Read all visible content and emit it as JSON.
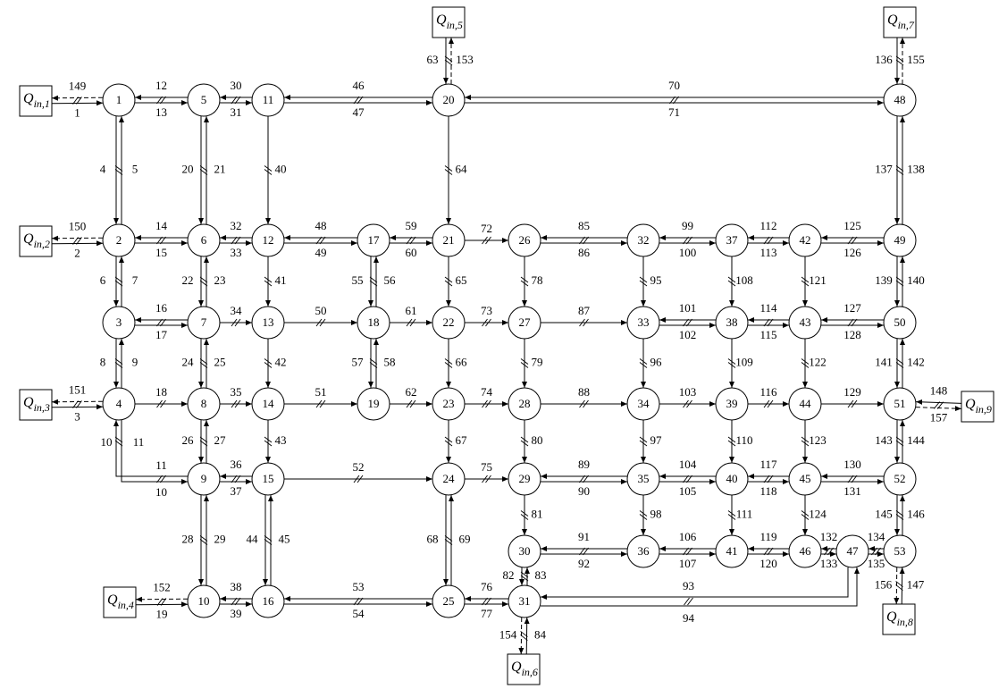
{
  "colors": {
    "line": "#000000",
    "background": "#ffffff"
  },
  "nodes": [
    {
      "id": "1",
      "col": 0,
      "row": 0
    },
    {
      "id": "5",
      "col": 1,
      "row": 0
    },
    {
      "id": "11",
      "col": 2,
      "row": 0
    },
    {
      "id": "20",
      "col": 5,
      "row": 0
    },
    {
      "id": "48",
      "col": 12,
      "row": 0
    },
    {
      "id": "2",
      "col": 0,
      "row": 1
    },
    {
      "id": "6",
      "col": 1,
      "row": 1
    },
    {
      "id": "12",
      "col": 2,
      "row": 1
    },
    {
      "id": "17",
      "col": 4,
      "row": 1
    },
    {
      "id": "21",
      "col": 5,
      "row": 1
    },
    {
      "id": "26",
      "col": 6,
      "row": 1
    },
    {
      "id": "32",
      "col": 8,
      "row": 1
    },
    {
      "id": "37",
      "col": 9,
      "row": 1
    },
    {
      "id": "42",
      "col": 10,
      "row": 1
    },
    {
      "id": "49",
      "col": 12,
      "row": 1
    },
    {
      "id": "3",
      "col": 0,
      "row": 2
    },
    {
      "id": "7",
      "col": 1,
      "row": 2
    },
    {
      "id": "13",
      "col": 2,
      "row": 2
    },
    {
      "id": "18",
      "col": 4,
      "row": 2
    },
    {
      "id": "22",
      "col": 5,
      "row": 2
    },
    {
      "id": "27",
      "col": 6,
      "row": 2
    },
    {
      "id": "33",
      "col": 8,
      "row": 2
    },
    {
      "id": "38",
      "col": 9,
      "row": 2
    },
    {
      "id": "43",
      "col": 10,
      "row": 2
    },
    {
      "id": "50",
      "col": 12,
      "row": 2
    },
    {
      "id": "4",
      "col": 0,
      "row": 3
    },
    {
      "id": "8",
      "col": 1,
      "row": 3
    },
    {
      "id": "14",
      "col": 2,
      "row": 3
    },
    {
      "id": "19",
      "col": 4,
      "row": 3
    },
    {
      "id": "23",
      "col": 5,
      "row": 3
    },
    {
      "id": "28",
      "col": 6,
      "row": 3
    },
    {
      "id": "34",
      "col": 8,
      "row": 3
    },
    {
      "id": "39",
      "col": 9,
      "row": 3
    },
    {
      "id": "44",
      "col": 10,
      "row": 3
    },
    {
      "id": "51",
      "col": 12,
      "row": 3
    },
    {
      "id": "9",
      "col": 1,
      "row": 4
    },
    {
      "id": "15",
      "col": 2,
      "row": 4
    },
    {
      "id": "24",
      "col": 5,
      "row": 4
    },
    {
      "id": "29",
      "col": 6,
      "row": 4
    },
    {
      "id": "35",
      "col": 8,
      "row": 4
    },
    {
      "id": "40",
      "col": 9,
      "row": 4
    },
    {
      "id": "45",
      "col": 10,
      "row": 4
    },
    {
      "id": "52",
      "col": 12,
      "row": 4
    },
    {
      "id": "30",
      "col": 6,
      "row": 5
    },
    {
      "id": "36",
      "col": 8,
      "row": 5
    },
    {
      "id": "41",
      "col": 9,
      "row": 5
    },
    {
      "id": "46",
      "col": 10,
      "row": 5
    },
    {
      "id": "47",
      "col": 11,
      "row": 5
    },
    {
      "id": "53",
      "col": 12,
      "row": 5
    },
    {
      "id": "10",
      "col": 1,
      "row": 6
    },
    {
      "id": "16",
      "col": 2,
      "row": 6
    },
    {
      "id": "25",
      "col": 5,
      "row": 6
    },
    {
      "id": "31",
      "col": 6,
      "row": 6
    }
  ],
  "sources": [
    {
      "id": "q1",
      "q": "Q",
      "sub": "in,1",
      "pos": "left-of-1"
    },
    {
      "id": "q2",
      "q": "Q",
      "sub": "in,2",
      "pos": "left-of-2"
    },
    {
      "id": "q3",
      "q": "Q",
      "sub": "in,3",
      "pos": "left-of-4"
    },
    {
      "id": "q4",
      "q": "Q",
      "sub": "in,4",
      "pos": "left-of-10"
    },
    {
      "id": "q5",
      "q": "Q",
      "sub": "in,5",
      "pos": "above-20"
    },
    {
      "id": "q6",
      "q": "Q",
      "sub": "in,6",
      "pos": "below-31"
    },
    {
      "id": "q7",
      "q": "Q",
      "sub": "in,7",
      "pos": "above-48"
    },
    {
      "id": "q8",
      "q": "Q",
      "sub": "in,8",
      "pos": "below-53"
    },
    {
      "id": "q9",
      "q": "Q",
      "sub": "in,9",
      "pos": "right-of-51"
    }
  ],
  "edges": [
    {
      "from": "q1",
      "to": "1",
      "type": "pair",
      "labels": [
        "1",
        "149"
      ],
      "dashed": [
        false,
        true
      ]
    },
    {
      "from": "1",
      "to": "5",
      "type": "pair",
      "labels": [
        "13",
        "12"
      ]
    },
    {
      "from": "5",
      "to": "11",
      "type": "pair",
      "labels": [
        "31",
        "30"
      ]
    },
    {
      "from": "11",
      "to": "20",
      "type": "pair",
      "labels": [
        "47",
        "46"
      ]
    },
    {
      "from": "20",
      "to": "48",
      "type": "pair",
      "labels": [
        "71",
        "70"
      ]
    },
    {
      "from": "1",
      "to": "2",
      "type": "pair",
      "labels": [
        "4",
        "5"
      ]
    },
    {
      "from": "5",
      "to": "6",
      "type": "pair",
      "labels": [
        "20",
        "21"
      ]
    },
    {
      "from": "11",
      "to": "12",
      "type": "single",
      "labels": [
        "40"
      ]
    },
    {
      "from": "20",
      "to": "21",
      "type": "single",
      "labels": [
        "64"
      ]
    },
    {
      "from": "48",
      "to": "49",
      "type": "pair",
      "labels": [
        "137",
        "138"
      ]
    },
    {
      "from": "q5",
      "to": "20",
      "type": "pair",
      "labels": [
        "63",
        "153"
      ],
      "dashed": [
        false,
        true
      ]
    },
    {
      "from": "q7",
      "to": "48",
      "type": "pair",
      "labels": [
        "136",
        "155"
      ],
      "dashed": [
        false,
        true
      ]
    },
    {
      "from": "q2",
      "to": "2",
      "type": "pair",
      "labels": [
        "2",
        "150"
      ],
      "dashed": [
        false,
        true
      ]
    },
    {
      "from": "2",
      "to": "6",
      "type": "pair",
      "labels": [
        "15",
        "14"
      ]
    },
    {
      "from": "6",
      "to": "12",
      "type": "pair",
      "labels": [
        "33",
        "32"
      ]
    },
    {
      "from": "12",
      "to": "17",
      "type": "pair",
      "labels": [
        "49",
        "48"
      ]
    },
    {
      "from": "17",
      "to": "21",
      "type": "pair",
      "labels": [
        "60",
        "59"
      ]
    },
    {
      "from": "21",
      "to": "26",
      "type": "single",
      "labels": [
        "72"
      ]
    },
    {
      "from": "26",
      "to": "32",
      "type": "pair",
      "labels": [
        "86",
        "85"
      ]
    },
    {
      "from": "32",
      "to": "37",
      "type": "pair",
      "labels": [
        "100",
        "99"
      ]
    },
    {
      "from": "37",
      "to": "42",
      "type": "pair",
      "labels": [
        "113",
        "112"
      ]
    },
    {
      "from": "42",
      "to": "49",
      "type": "pair",
      "labels": [
        "126",
        "125"
      ]
    },
    {
      "from": "2",
      "to": "3",
      "type": "pair",
      "labels": [
        "6",
        "7"
      ]
    },
    {
      "from": "6",
      "to": "7",
      "type": "pair",
      "labels": [
        "22",
        "23"
      ]
    },
    {
      "from": "12",
      "to": "13",
      "type": "single",
      "labels": [
        "41"
      ]
    },
    {
      "from": "17",
      "to": "18",
      "type": "pair",
      "labels": [
        "55",
        "56"
      ]
    },
    {
      "from": "21",
      "to": "22",
      "type": "single",
      "labels": [
        "65"
      ]
    },
    {
      "from": "26",
      "to": "27",
      "type": "single",
      "labels": [
        "78"
      ]
    },
    {
      "from": "32",
      "to": "33",
      "type": "single",
      "labels": [
        "95"
      ]
    },
    {
      "from": "37",
      "to": "38",
      "type": "single",
      "labels": [
        "108"
      ]
    },
    {
      "from": "42",
      "to": "43",
      "type": "single",
      "labels": [
        "121"
      ]
    },
    {
      "from": "49",
      "to": "50",
      "type": "pair",
      "labels": [
        "139",
        "140"
      ]
    },
    {
      "from": "3",
      "to": "7",
      "type": "pair",
      "labels": [
        "17",
        "16"
      ]
    },
    {
      "from": "7",
      "to": "13",
      "type": "single",
      "labels": [
        "34"
      ]
    },
    {
      "from": "13",
      "to": "18",
      "type": "single",
      "labels": [
        "50"
      ]
    },
    {
      "from": "18",
      "to": "22",
      "type": "single",
      "labels": [
        "61"
      ]
    },
    {
      "from": "22",
      "to": "27",
      "type": "single",
      "labels": [
        "73"
      ]
    },
    {
      "from": "27",
      "to": "33",
      "type": "single",
      "labels": [
        "87"
      ]
    },
    {
      "from": "33",
      "to": "38",
      "type": "pair",
      "labels": [
        "102",
        "101"
      ]
    },
    {
      "from": "38",
      "to": "43",
      "type": "pair",
      "labels": [
        "115",
        "114"
      ]
    },
    {
      "from": "43",
      "to": "50",
      "type": "pair",
      "labels": [
        "128",
        "127"
      ]
    },
    {
      "from": "3",
      "to": "4",
      "type": "pair",
      "labels": [
        "8",
        "9"
      ]
    },
    {
      "from": "7",
      "to": "8",
      "type": "pair",
      "labels": [
        "24",
        "25"
      ]
    },
    {
      "from": "13",
      "to": "14",
      "type": "single",
      "labels": [
        "42"
      ]
    },
    {
      "from": "18",
      "to": "19",
      "type": "pair",
      "labels": [
        "57",
        "58"
      ]
    },
    {
      "from": "22",
      "to": "23",
      "type": "single",
      "labels": [
        "66"
      ]
    },
    {
      "from": "27",
      "to": "28",
      "type": "single",
      "labels": [
        "79"
      ]
    },
    {
      "from": "33",
      "to": "34",
      "type": "single",
      "labels": [
        "96"
      ]
    },
    {
      "from": "38",
      "to": "39",
      "type": "single",
      "labels": [
        "109"
      ]
    },
    {
      "from": "43",
      "to": "44",
      "type": "single",
      "labels": [
        "122"
      ]
    },
    {
      "from": "50",
      "to": "51",
      "type": "pair",
      "labels": [
        "141",
        "142"
      ]
    },
    {
      "from": "q3",
      "to": "4",
      "type": "pair",
      "labels": [
        "3",
        "151"
      ],
      "dashed": [
        false,
        true
      ]
    },
    {
      "from": "4",
      "to": "8",
      "type": "single",
      "labels": [
        "18"
      ]
    },
    {
      "from": "8",
      "to": "14",
      "type": "single",
      "labels": [
        "35"
      ]
    },
    {
      "from": "14",
      "to": "19",
      "type": "single",
      "labels": [
        "51"
      ]
    },
    {
      "from": "19",
      "to": "23",
      "type": "single",
      "labels": [
        "62"
      ]
    },
    {
      "from": "23",
      "to": "28",
      "type": "single",
      "labels": [
        "74"
      ]
    },
    {
      "from": "28",
      "to": "34",
      "type": "single",
      "labels": [
        "88"
      ]
    },
    {
      "from": "34",
      "to": "39",
      "type": "single",
      "labels": [
        "103"
      ]
    },
    {
      "from": "39",
      "to": "44",
      "type": "single",
      "labels": [
        "116"
      ]
    },
    {
      "from": "44",
      "to": "51",
      "type": "single",
      "labels": [
        "129"
      ]
    },
    {
      "from": "q9",
      "to": "51",
      "type": "pair",
      "labels": [
        "148",
        "157"
      ],
      "dashed": [
        false,
        true
      ]
    },
    {
      "from": "4",
      "to": "9",
      "type": "pair",
      "labels": [
        "10",
        "11"
      ],
      "route": "L"
    },
    {
      "from": "8",
      "to": "9",
      "type": "pair",
      "labels": [
        "26",
        "27"
      ]
    },
    {
      "from": "14",
      "to": "15",
      "type": "single",
      "labels": [
        "43"
      ]
    },
    {
      "from": "23",
      "to": "24",
      "type": "single",
      "labels": [
        "67"
      ]
    },
    {
      "from": "28",
      "to": "29",
      "type": "single",
      "labels": [
        "80"
      ]
    },
    {
      "from": "34",
      "to": "35",
      "type": "single",
      "labels": [
        "97"
      ]
    },
    {
      "from": "39",
      "to": "40",
      "type": "single",
      "labels": [
        "110"
      ]
    },
    {
      "from": "44",
      "to": "45",
      "type": "single",
      "labels": [
        "123"
      ]
    },
    {
      "from": "51",
      "to": "52",
      "type": "pair",
      "labels": [
        "143",
        "144"
      ]
    },
    {
      "from": "9",
      "to": "15",
      "type": "pair",
      "labels": [
        "37",
        "36"
      ]
    },
    {
      "from": "15",
      "to": "24",
      "type": "single",
      "labels": [
        "52"
      ]
    },
    {
      "from": "24",
      "to": "29",
      "type": "single",
      "labels": [
        "75"
      ]
    },
    {
      "from": "29",
      "to": "35",
      "type": "pair",
      "labels": [
        "90",
        "89"
      ]
    },
    {
      "from": "35",
      "to": "40",
      "type": "pair",
      "labels": [
        "105",
        "104"
      ]
    },
    {
      "from": "40",
      "to": "45",
      "type": "pair",
      "labels": [
        "118",
        "117"
      ]
    },
    {
      "from": "45",
      "to": "52",
      "type": "pair",
      "labels": [
        "131",
        "130"
      ]
    },
    {
      "from": "9",
      "to": "10",
      "type": "pair",
      "labels": [
        "28",
        "29"
      ]
    },
    {
      "from": "15",
      "to": "16",
      "type": "pair",
      "labels": [
        "44",
        "45"
      ]
    },
    {
      "from": "24",
      "to": "25",
      "type": "pair",
      "labels": [
        "68",
        "69"
      ]
    },
    {
      "from": "29",
      "to": "30",
      "type": "single",
      "labels": [
        "81"
      ]
    },
    {
      "from": "35",
      "to": "36",
      "type": "single",
      "labels": [
        "98"
      ]
    },
    {
      "from": "40",
      "to": "41",
      "type": "single",
      "labels": [
        "111"
      ]
    },
    {
      "from": "45",
      "to": "46",
      "type": "single",
      "labels": [
        "124"
      ]
    },
    {
      "from": "52",
      "to": "53",
      "type": "pair",
      "labels": [
        "145",
        "146"
      ]
    },
    {
      "from": "30",
      "to": "36",
      "type": "pair",
      "labels": [
        "92",
        "91"
      ]
    },
    {
      "from": "36",
      "to": "41",
      "type": "pair",
      "labels": [
        "107",
        "106"
      ]
    },
    {
      "from": "41",
      "to": "46",
      "type": "pair",
      "labels": [
        "120",
        "119"
      ]
    },
    {
      "from": "46",
      "to": "47",
      "type": "pair",
      "labels": [
        "133",
        "132"
      ]
    },
    {
      "from": "47",
      "to": "53",
      "type": "pair",
      "labels": [
        "135",
        "134"
      ]
    },
    {
      "from": "30",
      "to": "31",
      "type": "pair",
      "labels": [
        "82",
        "83"
      ]
    },
    {
      "from": "31",
      "to": "q6",
      "type": "pair",
      "labels": [
        "154",
        "84"
      ],
      "dashed": [
        true,
        false
      ]
    },
    {
      "from": "53",
      "to": "q8",
      "type": "pair",
      "labels": [
        "156",
        "147"
      ],
      "dashed": [
        true,
        false
      ]
    },
    {
      "from": "q4",
      "to": "10",
      "type": "pair",
      "labels": [
        "19",
        "152"
      ],
      "dashed": [
        false,
        true
      ]
    },
    {
      "from": "10",
      "to": "16",
      "type": "pair",
      "labels": [
        "39",
        "38"
      ]
    },
    {
      "from": "16",
      "to": "25",
      "type": "pair",
      "labels": [
        "54",
        "53"
      ]
    },
    {
      "from": "25",
      "to": "31",
      "type": "pair",
      "labels": [
        "77",
        "76"
      ]
    },
    {
      "from": "31",
      "to": "47",
      "type": "pair",
      "labels": [
        "94",
        "93"
      ],
      "route": "U"
    }
  ]
}
